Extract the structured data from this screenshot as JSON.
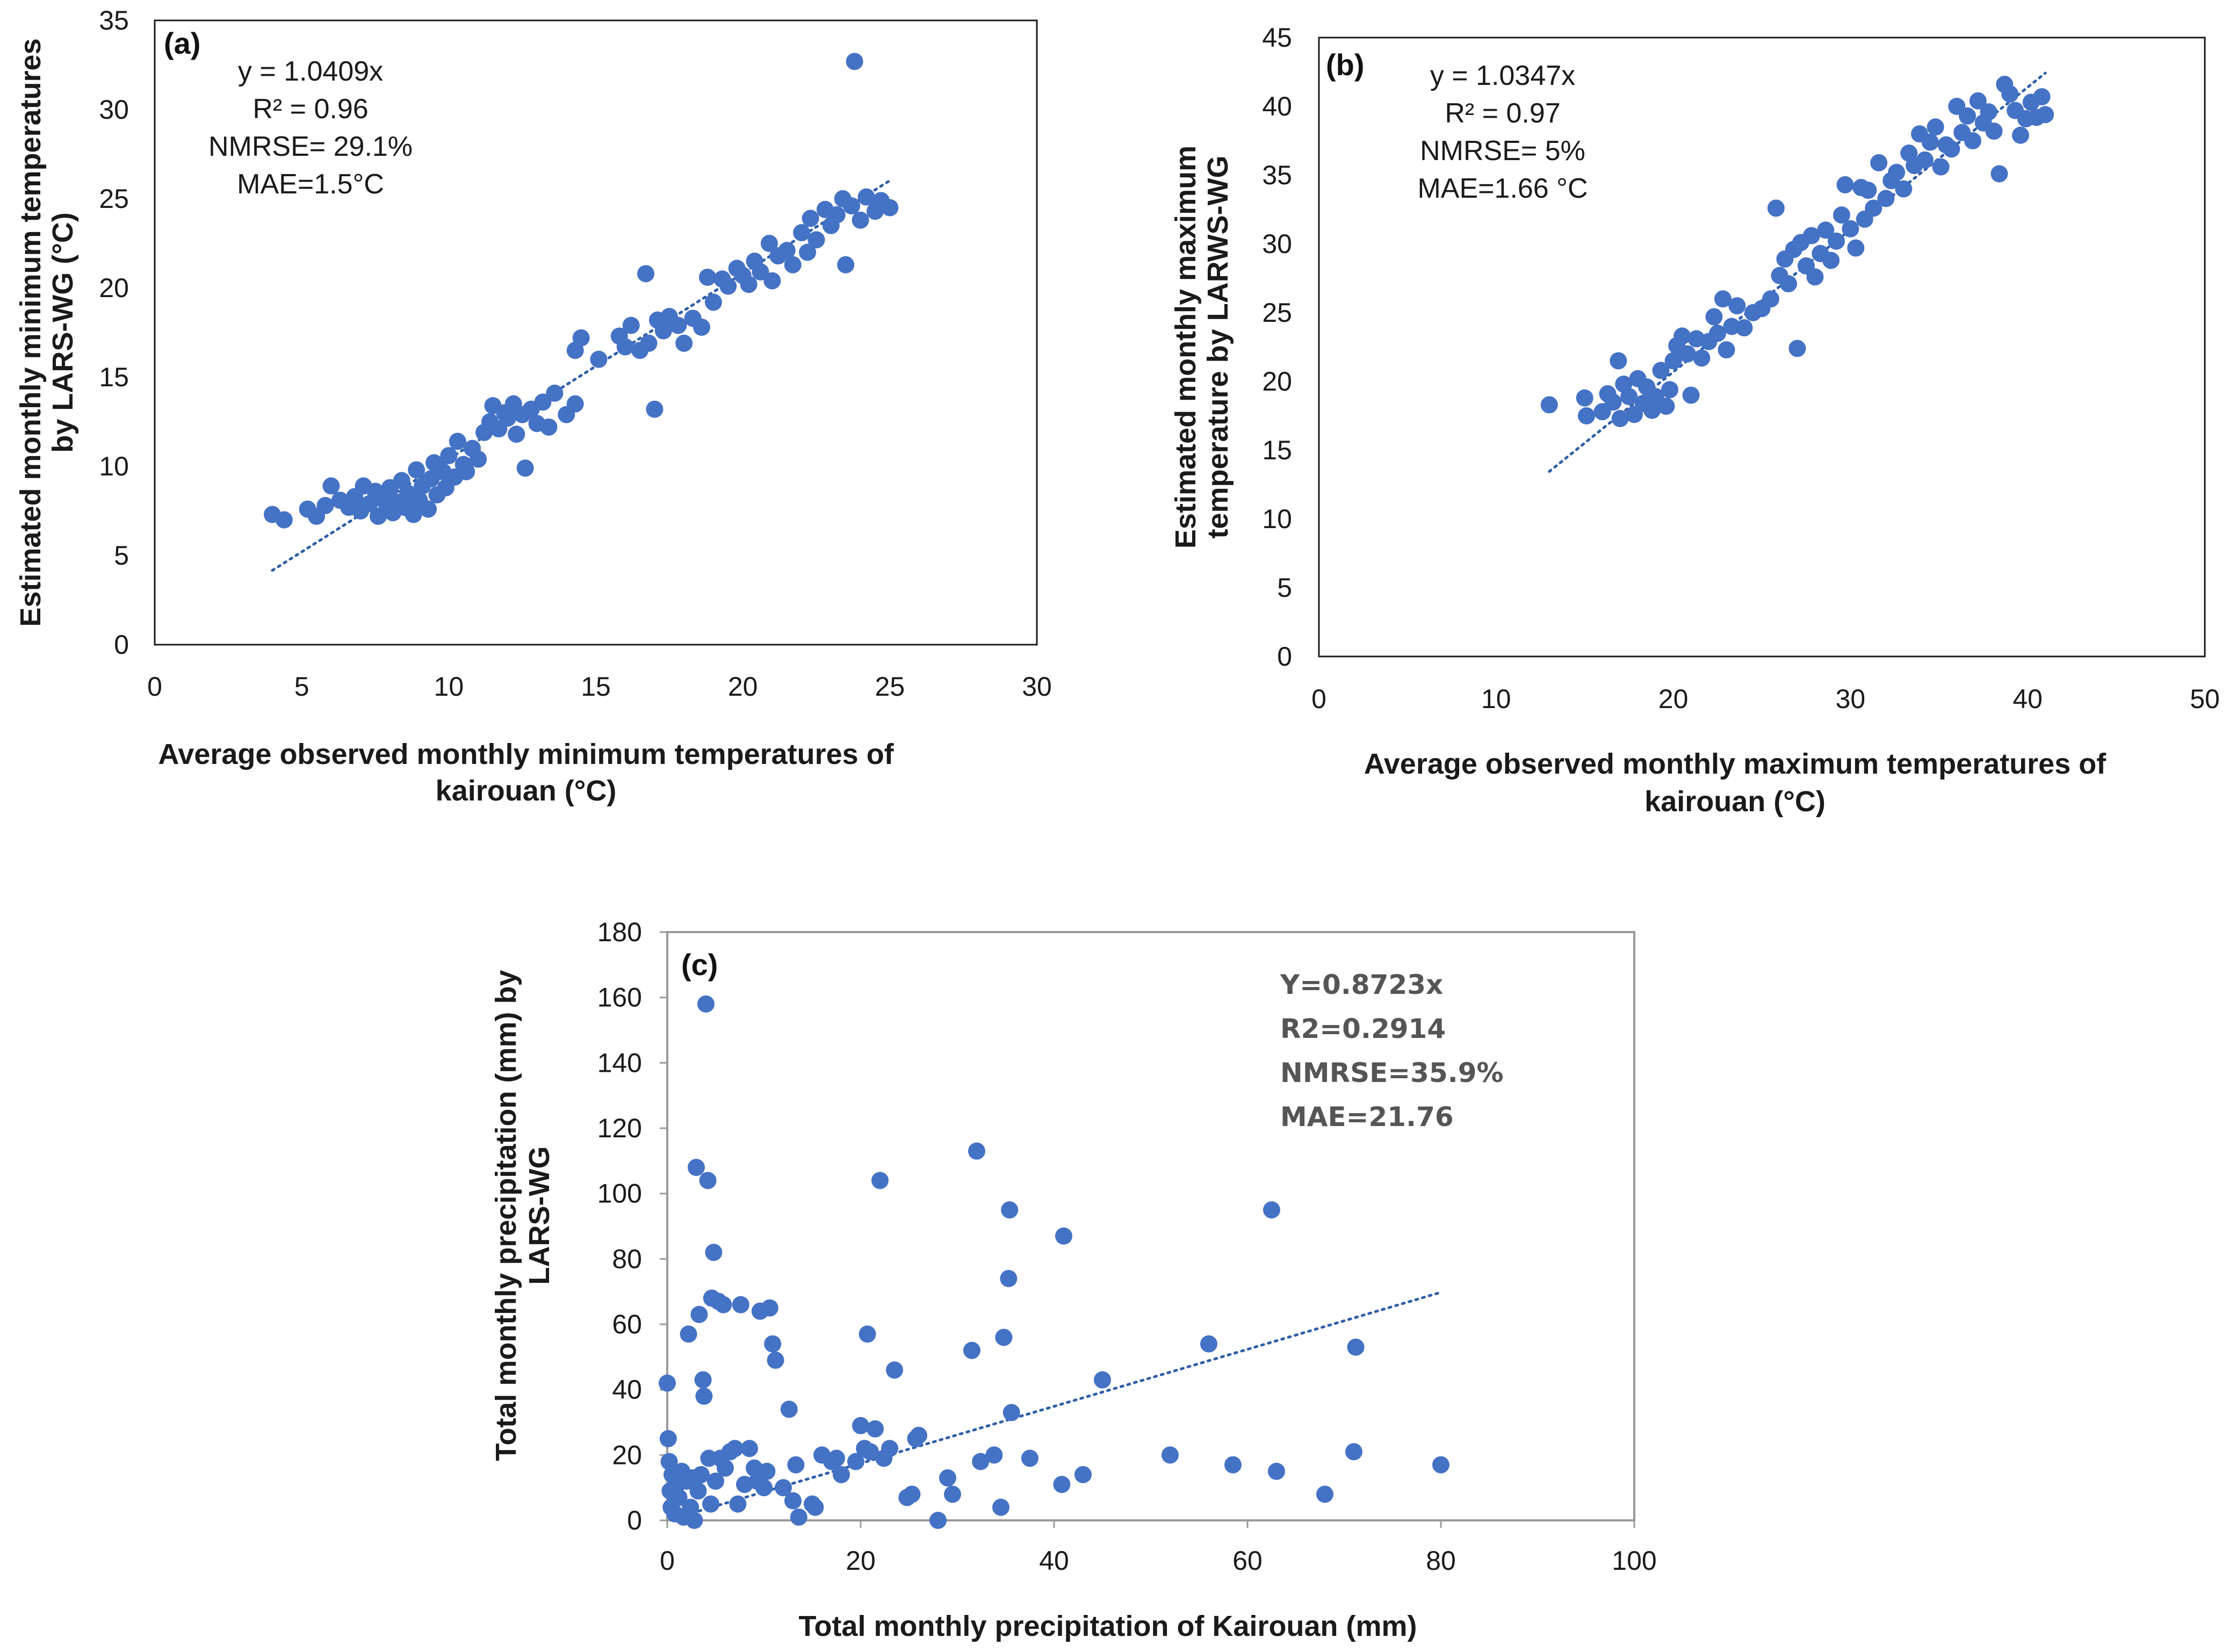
{
  "colors": {
    "point": "#4472C4",
    "trend": "#2E5FA8",
    "axis": "#1a1a1a"
  },
  "chart_data": [
    {
      "type": "scatter",
      "panel_label": "(a)",
      "xlabel": [
        "Average observed monthly minimum temperatures of",
        "kairouan (°C)"
      ],
      "ylabel": [
        "Estimated monthly minimum temperatures",
        "by LARS-WG (°C)"
      ],
      "xlim": [
        0,
        30
      ],
      "ylim": [
        0,
        35
      ],
      "xticks": [
        "0",
        "5",
        "10",
        "15",
        "20",
        "25",
        "30"
      ],
      "yticks": [
        "0",
        "5",
        "10",
        "15",
        "20",
        "25",
        "30",
        "35"
      ],
      "annotation": [
        "y = 1.0409x",
        "R² = 0.96",
        "NMRSE= 29.1%",
        "MAE=1.5°C"
      ],
      "trendline": {
        "slope": 1.0409,
        "x_range": [
          4,
          25
        ]
      },
      "points": [
        [
          4,
          7.3
        ],
        [
          4.4,
          7.0
        ],
        [
          5.2,
          7.6
        ],
        [
          5.5,
          7.2
        ],
        [
          5.8,
          7.8
        ],
        [
          6,
          8.9
        ],
        [
          6.3,
          8.1
        ],
        [
          6.6,
          7.7
        ],
        [
          6.8,
          8.3
        ],
        [
          7,
          7.5
        ],
        [
          7.1,
          8.9
        ],
        [
          7.3,
          7.9
        ],
        [
          7.5,
          8.6
        ],
        [
          7.6,
          7.2
        ],
        [
          7.7,
          8.2
        ],
        [
          7.9,
          7.6
        ],
        [
          8,
          8.8
        ],
        [
          8.1,
          7.4
        ],
        [
          8.2,
          8.0
        ],
        [
          8.4,
          9.2
        ],
        [
          8.5,
          7.7
        ],
        [
          8.6,
          8.5
        ],
        [
          8.8,
          7.3
        ],
        [
          8.9,
          9.8
        ],
        [
          9,
          8.1
        ],
        [
          9.1,
          8.9
        ],
        [
          9.3,
          7.6
        ],
        [
          9.4,
          9.3
        ],
        [
          9.5,
          10.2
        ],
        [
          9.6,
          8.4
        ],
        [
          9.8,
          9.7
        ],
        [
          9.9,
          8.8
        ],
        [
          10,
          10.6
        ],
        [
          10.2,
          9.4
        ],
        [
          10.3,
          11.4
        ],
        [
          10.5,
          10.1
        ],
        [
          10.6,
          9.7
        ],
        [
          10.8,
          11.0
        ],
        [
          11,
          10.4
        ],
        [
          11.2,
          11.9
        ],
        [
          11.4,
          12.5
        ],
        [
          11.5,
          13.4
        ],
        [
          11.7,
          12.1
        ],
        [
          11.9,
          13.0
        ],
        [
          12,
          12.7
        ],
        [
          12.2,
          13.5
        ],
        [
          12.3,
          11.8
        ],
        [
          12.5,
          12.9
        ],
        [
          12.6,
          9.9
        ],
        [
          12.8,
          13.2
        ],
        [
          13,
          12.4
        ],
        [
          13.2,
          13.6
        ],
        [
          13.4,
          12.2
        ],
        [
          13.6,
          14.1
        ],
        [
          14,
          12.9
        ],
        [
          14.3,
          13.5
        ],
        [
          14.3,
          16.5
        ],
        [
          14.5,
          17.2
        ],
        [
          15.1,
          16.0
        ],
        [
          15.8,
          17.3
        ],
        [
          16,
          16.7
        ],
        [
          16.2,
          17.9
        ],
        [
          16.5,
          16.5
        ],
        [
          16.7,
          20.8
        ],
        [
          16.8,
          16.9
        ],
        [
          17,
          13.2
        ],
        [
          17.1,
          18.2
        ],
        [
          17.3,
          17.6
        ],
        [
          17.5,
          18.4
        ],
        [
          17.8,
          17.9
        ],
        [
          18,
          16.9
        ],
        [
          18.3,
          18.3
        ],
        [
          18.6,
          17.8
        ],
        [
          18.8,
          20.6
        ],
        [
          19,
          19.2
        ],
        [
          19.3,
          20.5
        ],
        [
          19.5,
          20.1
        ],
        [
          19.8,
          21.1
        ],
        [
          20,
          20.7
        ],
        [
          20.2,
          20.2
        ],
        [
          20.4,
          21.5
        ],
        [
          20.6,
          20.9
        ],
        [
          20.9,
          22.5
        ],
        [
          21,
          20.4
        ],
        [
          21.2,
          21.8
        ],
        [
          21.5,
          22.1
        ],
        [
          21.7,
          21.3
        ],
        [
          22,
          23.1
        ],
        [
          22.2,
          22.0
        ],
        [
          22.3,
          23.9
        ],
        [
          22.5,
          22.7
        ],
        [
          22.8,
          24.4
        ],
        [
          23,
          23.5
        ],
        [
          23.2,
          24.1
        ],
        [
          23.4,
          25.0
        ],
        [
          23.5,
          21.3
        ],
        [
          23.7,
          24.6
        ],
        [
          23.8,
          32.7
        ],
        [
          24,
          23.8
        ],
        [
          24.2,
          25.1
        ],
        [
          24.5,
          24.3
        ],
        [
          24.7,
          24.9
        ],
        [
          25,
          24.5
        ]
      ]
    },
    {
      "type": "scatter",
      "panel_label": "(b)",
      "xlabel": [
        "Average observed monthly maximum temperatures of",
        "kairouan (°C)"
      ],
      "ylabel": [
        "Estimated monthly maximum",
        "temperature by LARWS-WG"
      ],
      "xlim": [
        0,
        50
      ],
      "ylim": [
        0,
        45
      ],
      "xticks": [
        "0",
        "10",
        "20",
        "30",
        "40",
        "50"
      ],
      "yticks": [
        "0",
        "5",
        "10",
        "15",
        "20",
        "25",
        "30",
        "35",
        "40",
        "45"
      ],
      "annotation": [
        "y = 1.0347x",
        "R² = 0.97",
        "NMRSE= 5%",
        "MAE=1.66 °C"
      ],
      "trendline": {
        "slope": 1.0347,
        "x_range": [
          13,
          41
        ]
      },
      "points": [
        [
          13,
          18.3
        ],
        [
          15,
          18.8
        ],
        [
          15.1,
          17.5
        ],
        [
          16,
          17.8
        ],
        [
          16.3,
          19.1
        ],
        [
          16.6,
          18.5
        ],
        [
          16.9,
          21.5
        ],
        [
          17,
          17.3
        ],
        [
          17.2,
          19.8
        ],
        [
          17.5,
          18.9
        ],
        [
          17.8,
          17.6
        ],
        [
          18,
          20.2
        ],
        [
          18.3,
          18.4
        ],
        [
          18.5,
          19.6
        ],
        [
          18.8,
          17.9
        ],
        [
          19,
          18.9
        ],
        [
          19.3,
          20.8
        ],
        [
          19.6,
          18.2
        ],
        [
          19.8,
          19.4
        ],
        [
          20,
          21.5
        ],
        [
          20.2,
          22.6
        ],
        [
          20.5,
          23.3
        ],
        [
          20.8,
          22.0
        ],
        [
          21,
          19.0
        ],
        [
          21.3,
          23.1
        ],
        [
          21.6,
          21.7
        ],
        [
          22,
          22.9
        ],
        [
          22.3,
          24.7
        ],
        [
          22.5,
          23.5
        ],
        [
          22.8,
          26.0
        ],
        [
          23,
          22.3
        ],
        [
          23.3,
          24.0
        ],
        [
          23.6,
          25.5
        ],
        [
          24,
          23.9
        ],
        [
          24.5,
          25.0
        ],
        [
          25,
          25.3
        ],
        [
          25.5,
          26.0
        ],
        [
          25.8,
          32.6
        ],
        [
          26,
          27.7
        ],
        [
          26.3,
          28.9
        ],
        [
          26.5,
          27.1
        ],
        [
          26.8,
          29.6
        ],
        [
          27,
          22.4
        ],
        [
          27.2,
          30.1
        ],
        [
          27.5,
          28.4
        ],
        [
          27.8,
          30.6
        ],
        [
          28,
          27.6
        ],
        [
          28.3,
          29.3
        ],
        [
          28.6,
          31.0
        ],
        [
          28.9,
          28.8
        ],
        [
          29.2,
          30.2
        ],
        [
          29.5,
          32.1
        ],
        [
          29.7,
          34.3
        ],
        [
          30,
          31.1
        ],
        [
          30.3,
          29.7
        ],
        [
          30.6,
          34.1
        ],
        [
          30.8,
          31.8
        ],
        [
          31,
          33.9
        ],
        [
          31.3,
          32.6
        ],
        [
          31.6,
          35.9
        ],
        [
          32,
          33.3
        ],
        [
          32.3,
          34.6
        ],
        [
          32.6,
          35.2
        ],
        [
          33,
          34.0
        ],
        [
          33.3,
          36.6
        ],
        [
          33.6,
          35.7
        ],
        [
          33.9,
          38.0
        ],
        [
          34.2,
          36.1
        ],
        [
          34.5,
          37.4
        ],
        [
          34.8,
          38.5
        ],
        [
          35.1,
          35.6
        ],
        [
          35.4,
          37.2
        ],
        [
          35.7,
          36.9
        ],
        [
          36,
          40.0
        ],
        [
          36.3,
          38.1
        ],
        [
          36.6,
          39.3
        ],
        [
          36.9,
          37.5
        ],
        [
          37.2,
          40.4
        ],
        [
          37.5,
          38.8
        ],
        [
          37.8,
          39.6
        ],
        [
          38.1,
          38.2
        ],
        [
          38.4,
          35.1
        ],
        [
          38.7,
          41.6
        ],
        [
          39,
          40.9
        ],
        [
          39.3,
          39.7
        ],
        [
          39.6,
          37.9
        ],
        [
          39.9,
          39.1
        ],
        [
          40.2,
          40.3
        ],
        [
          40.5,
          39.2
        ],
        [
          40.8,
          40.7
        ],
        [
          41,
          39.4
        ]
      ]
    },
    {
      "type": "scatter",
      "panel_label": "(c)",
      "xlabel": [
        "Total monthly precipitation of Kairouan (mm)"
      ],
      "ylabel": [
        "Total monthly precipitation (mm) by",
        "LARS-WG"
      ],
      "xlim": [
        0,
        100
      ],
      "ylim": [
        0,
        180
      ],
      "xticks": [
        "0",
        "20",
        "40",
        "60",
        "80",
        "100"
      ],
      "yticks": [
        "0",
        "20",
        "40",
        "60",
        "80",
        "100",
        "120",
        "140",
        "160",
        "180"
      ],
      "annotation": [
        "Y=0.8723x",
        "R2=0.2914",
        "NMRSE=35.9%",
        "MAE=21.76"
      ],
      "trendline": {
        "slope": 0.8723,
        "x_range": [
          0.5,
          80
        ]
      },
      "points": [
        [
          0,
          42
        ],
        [
          0.1,
          25
        ],
        [
          0.2,
          18
        ],
        [
          0.3,
          9
        ],
        [
          0.4,
          4
        ],
        [
          0.5,
          14
        ],
        [
          0.8,
          2
        ],
        [
          1,
          11
        ],
        [
          1.2,
          7
        ],
        [
          1.5,
          15
        ],
        [
          1.7,
          1
        ],
        [
          2,
          12
        ],
        [
          2.2,
          57
        ],
        [
          2.4,
          4
        ],
        [
          2.6,
          13
        ],
        [
          2.8,
          0
        ],
        [
          3,
          108
        ],
        [
          3.2,
          9
        ],
        [
          3.3,
          63
        ],
        [
          3.5,
          14
        ],
        [
          3.7,
          43
        ],
        [
          3.8,
          38
        ],
        [
          4,
          158
        ],
        [
          4.2,
          104
        ],
        [
          4.3,
          19
        ],
        [
          4.5,
          5
        ],
        [
          4.6,
          68
        ],
        [
          4.8,
          82
        ],
        [
          5,
          12
        ],
        [
          5.3,
          67
        ],
        [
          5.5,
          19
        ],
        [
          5.8,
          66
        ],
        [
          6,
          16
        ],
        [
          6.5,
          21
        ],
        [
          7,
          22
        ],
        [
          7.3,
          5
        ],
        [
          7.6,
          66
        ],
        [
          8,
          11
        ],
        [
          8.5,
          22
        ],
        [
          9,
          16
        ],
        [
          9.3,
          12
        ],
        [
          9.6,
          64
        ],
        [
          10,
          10
        ],
        [
          10.3,
          15
        ],
        [
          10.6,
          65
        ],
        [
          10.9,
          54
        ],
        [
          11.2,
          49
        ],
        [
          12,
          10
        ],
        [
          12.6,
          34
        ],
        [
          13,
          6
        ],
        [
          13.3,
          17
        ],
        [
          13.6,
          1
        ],
        [
          15,
          5
        ],
        [
          15.3,
          4
        ],
        [
          16,
          20
        ],
        [
          17,
          18
        ],
        [
          17.5,
          19
        ],
        [
          18,
          14
        ],
        [
          19.5,
          18
        ],
        [
          20,
          29
        ],
        [
          20.4,
          22
        ],
        [
          20.7,
          57
        ],
        [
          21,
          21
        ],
        [
          21.5,
          28
        ],
        [
          22,
          104
        ],
        [
          22.4,
          19
        ],
        [
          23,
          22
        ],
        [
          23.5,
          46
        ],
        [
          24.8,
          7
        ],
        [
          25.3,
          8
        ],
        [
          25.7,
          25
        ],
        [
          26,
          26
        ],
        [
          28,
          0
        ],
        [
          29,
          13
        ],
        [
          29.5,
          8
        ],
        [
          31.5,
          52
        ],
        [
          32,
          113
        ],
        [
          32.4,
          18
        ],
        [
          33.8,
          20
        ],
        [
          34.5,
          4
        ],
        [
          34.8,
          56
        ],
        [
          35.3,
          74
        ],
        [
          35.4,
          95
        ],
        [
          35.6,
          33
        ],
        [
          37.5,
          19
        ],
        [
          40.8,
          11
        ],
        [
          41,
          87
        ],
        [
          43,
          14
        ],
        [
          45,
          43
        ],
        [
          52,
          20
        ],
        [
          56,
          54
        ],
        [
          58.5,
          17
        ],
        [
          62.5,
          95
        ],
        [
          63,
          15
        ],
        [
          68,
          8
        ],
        [
          71,
          21
        ],
        [
          71.2,
          53
        ],
        [
          80,
          17
        ]
      ]
    }
  ]
}
